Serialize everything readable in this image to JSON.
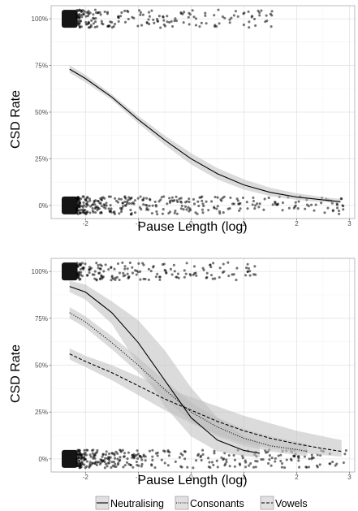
{
  "chart_data": [
    {
      "type": "scatter",
      "title": "",
      "xlabel": "Pause Length (log)",
      "ylabel": "CSD Rate",
      "xlim": [
        -2.65,
        3.1
      ],
      "ylim": [
        -0.07,
        1.07
      ],
      "x_ticks": [
        -2,
        -1,
        0,
        1,
        2,
        3
      ],
      "x_tick_labels": [
        "-2",
        "-1",
        "0",
        "1",
        "2",
        "3"
      ],
      "y_ticks": [
        0,
        0.25,
        0.5,
        0.75,
        1
      ],
      "y_tick_labels": [
        "0%",
        "25%",
        "50%",
        "75%",
        "100%"
      ],
      "grid": true,
      "points": {
        "description": "jittered binary observations (0% and 100%) with dense cluster at x = -2.3",
        "clusters": [
          {
            "y": 1,
            "x_range": [
              -2.45,
              1.55
            ],
            "count": 180
          },
          {
            "y": 0,
            "x_range": [
              -2.45,
              2.9
            ],
            "count": 320
          }
        ]
      },
      "series": [
        {
          "name": "",
          "line_style": "solid",
          "x": [
            -2.3,
            -2.0,
            -1.5,
            -1.0,
            -0.5,
            0.0,
            0.5,
            1.0,
            1.5,
            2.0,
            2.5,
            2.83
          ],
          "y": [
            0.73,
            0.68,
            0.58,
            0.46,
            0.35,
            0.25,
            0.17,
            0.11,
            0.07,
            0.045,
            0.03,
            0.02
          ],
          "ci_lower": [
            0.71,
            0.66,
            0.565,
            0.44,
            0.325,
            0.22,
            0.14,
            0.085,
            0.05,
            0.03,
            0.018,
            0.012
          ],
          "ci_upper": [
            0.75,
            0.7,
            0.595,
            0.48,
            0.375,
            0.28,
            0.2,
            0.14,
            0.095,
            0.065,
            0.045,
            0.035
          ]
        }
      ]
    },
    {
      "type": "scatter",
      "title": "",
      "xlabel": "Pause Length (log)",
      "ylabel": "CSD Rate",
      "xlim": [
        -2.65,
        3.1
      ],
      "ylim": [
        -0.07,
        1.07
      ],
      "x_ticks": [
        -2,
        -1,
        0,
        1,
        2,
        3
      ],
      "x_tick_labels": [
        "-2",
        "-1",
        "0",
        "1",
        "2",
        "3"
      ],
      "y_ticks": [
        0,
        0.25,
        0.5,
        0.75,
        1
      ],
      "y_tick_labels": [
        "0%",
        "25%",
        "50%",
        "75%",
        "100%"
      ],
      "grid": true,
      "legend": {
        "position": "bottom",
        "entries": [
          "Neutralising",
          "Consonants",
          "Vowels"
        ]
      },
      "points": {
        "description": "jittered binary observations (0% and 100%) with dense cluster at x = -2.3",
        "clusters": [
          {
            "y": 1,
            "x_range": [
              -2.45,
              1.3
            ],
            "count": 170
          },
          {
            "y": 0,
            "x_range": [
              -2.45,
              3.0
            ],
            "count": 320
          }
        ]
      },
      "series": [
        {
          "name": "Neutralising",
          "line_style": "solid",
          "x": [
            -2.3,
            -2.0,
            -1.5,
            -1.0,
            -0.5,
            0.0,
            0.5,
            1.0,
            1.3
          ],
          "y": [
            0.92,
            0.89,
            0.78,
            0.62,
            0.42,
            0.22,
            0.1,
            0.045,
            0.03
          ],
          "ci_lower": [
            0.89,
            0.85,
            0.72,
            0.5,
            0.28,
            0.12,
            0.04,
            0.015,
            0.008
          ],
          "ci_upper": [
            0.95,
            0.93,
            0.84,
            0.74,
            0.58,
            0.38,
            0.22,
            0.12,
            0.09
          ]
        },
        {
          "name": "Consonants",
          "line_style": "dotted",
          "x": [
            -2.3,
            -2.0,
            -1.5,
            -1.0,
            -0.5,
            0.0,
            0.5,
            1.0,
            1.5,
            2.0,
            2.2
          ],
          "y": [
            0.78,
            0.73,
            0.62,
            0.5,
            0.37,
            0.25,
            0.17,
            0.11,
            0.07,
            0.05,
            0.04
          ],
          "ci_lower": [
            0.75,
            0.7,
            0.585,
            0.46,
            0.32,
            0.2,
            0.12,
            0.07,
            0.04,
            0.02,
            0.015
          ],
          "ci_upper": [
            0.81,
            0.76,
            0.655,
            0.54,
            0.42,
            0.3,
            0.22,
            0.16,
            0.12,
            0.09,
            0.08
          ]
        },
        {
          "name": "Vowels",
          "line_style": "dashed",
          "x": [
            -2.3,
            -2.0,
            -1.5,
            -1.0,
            -0.5,
            0.0,
            0.5,
            1.0,
            1.5,
            2.0,
            2.5,
            2.85
          ],
          "y": [
            0.56,
            0.52,
            0.46,
            0.39,
            0.32,
            0.26,
            0.2,
            0.15,
            0.11,
            0.08,
            0.055,
            0.04
          ],
          "ci_lower": [
            0.53,
            0.49,
            0.42,
            0.34,
            0.26,
            0.19,
            0.13,
            0.085,
            0.055,
            0.035,
            0.02,
            0.012
          ],
          "ci_upper": [
            0.59,
            0.55,
            0.5,
            0.44,
            0.38,
            0.33,
            0.28,
            0.23,
            0.19,
            0.15,
            0.12,
            0.1
          ]
        }
      ]
    }
  ],
  "legend": {
    "items": [
      {
        "label": "Neutralising",
        "line_style": "solid"
      },
      {
        "label": "Consonants",
        "line_style": "dotted"
      },
      {
        "label": "Vowels",
        "line_style": "dashed"
      }
    ]
  },
  "colors": {
    "points": "#000000",
    "ribbon": "#bdbdbd",
    "line": "#000000",
    "panel_border": "#b3b3b3"
  }
}
